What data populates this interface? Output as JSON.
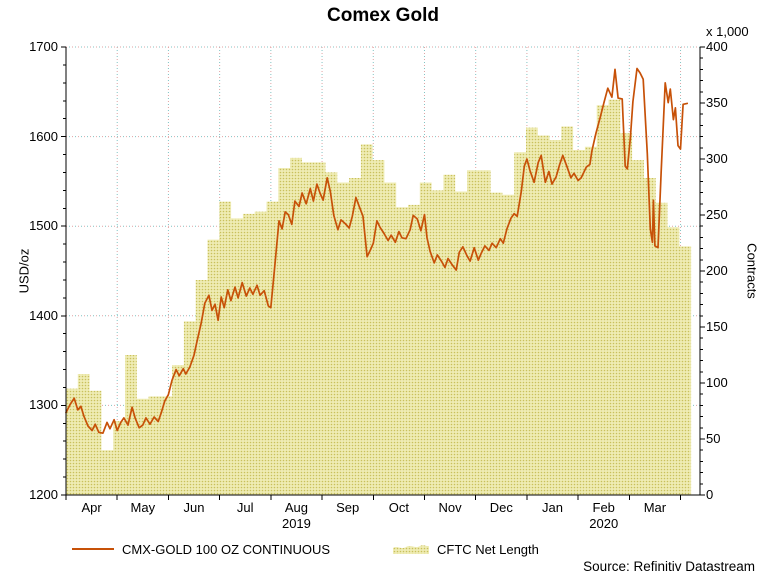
{
  "title": "Comex Gold",
  "right_axis_unit": "x 1,000",
  "left_axis_title": "USD/oz",
  "right_axis_title": "Contracts",
  "source": "Source: Refinitiv Datastream",
  "colors": {
    "gold_line": "#C75108",
    "area_bg": "#EFECB4",
    "area_dot": "#C9C05C",
    "grid_pink": "#E2A2A2",
    "grid_teal": "#7FC4C4",
    "axis": "#000000"
  },
  "legend": [
    {
      "label": "CMX-GOLD 100 OZ CONTINUOUS",
      "type": "line"
    },
    {
      "label": "CFTC Net Length",
      "type": "area"
    }
  ],
  "chart_data": {
    "type": "combo-line-steparea",
    "title": "Comex Gold",
    "x_unit": "months since 2019-04-01",
    "x_max_months": 12.38,
    "x_tick_labels": [
      "Apr",
      "May",
      "Jun",
      "Jul",
      "Aug",
      "Sep",
      "Oct",
      "Nov",
      "Dec",
      "Jan",
      "Feb",
      "Mar"
    ],
    "x_year_labels": [
      {
        "label": "2019",
        "month_index": 4
      },
      {
        "label": "2020",
        "month_index": 10
      }
    ],
    "left_axis": {
      "title": "USD/oz",
      "min": 1200,
      "max": 1700,
      "major": 100,
      "minor": 20
    },
    "right_axis": {
      "title": "Contracts",
      "unit": "x 1,000",
      "min": 0,
      "max": 400,
      "major": 50,
      "minor": 10
    },
    "grid": {
      "horizontal_at": [
        1300,
        1400,
        1500,
        1600,
        1700
      ],
      "vertical_at_month_bounds": true,
      "style": "dotted"
    },
    "series": [
      {
        "name": "CMX-GOLD 100 OZ CONTINUOUS",
        "axis": "left",
        "type": "line",
        "units": "USD/oz",
        "points": [
          [
            0,
            1292
          ],
          [
            0.08,
            1301
          ],
          [
            0.16,
            1308
          ],
          [
            0.23,
            1295
          ],
          [
            0.29,
            1299
          ],
          [
            0.35,
            1288
          ],
          [
            0.43,
            1277
          ],
          [
            0.51,
            1272
          ],
          [
            0.57,
            1279
          ],
          [
            0.64,
            1270
          ],
          [
            0.72,
            1269
          ],
          [
            0.8,
            1281
          ],
          [
            0.86,
            1274
          ],
          [
            0.94,
            1284
          ],
          [
            1.0,
            1272
          ],
          [
            1.07,
            1281
          ],
          [
            1.13,
            1286
          ],
          [
            1.21,
            1278
          ],
          [
            1.29,
            1298
          ],
          [
            1.35,
            1286
          ],
          [
            1.43,
            1275
          ],
          [
            1.5,
            1278
          ],
          [
            1.56,
            1286
          ],
          [
            1.64,
            1279
          ],
          [
            1.72,
            1287
          ],
          [
            1.8,
            1282
          ],
          [
            1.86,
            1292
          ],
          [
            1.93,
            1305
          ],
          [
            2.0,
            1312
          ],
          [
            2.07,
            1328
          ],
          [
            2.15,
            1340
          ],
          [
            2.21,
            1333
          ],
          [
            2.29,
            1341
          ],
          [
            2.34,
            1335
          ],
          [
            2.42,
            1343
          ],
          [
            2.5,
            1356
          ],
          [
            2.56,
            1372
          ],
          [
            2.64,
            1392
          ],
          [
            2.71,
            1414
          ],
          [
            2.79,
            1423
          ],
          [
            2.85,
            1406
          ],
          [
            2.91,
            1413
          ],
          [
            2.97,
            1395
          ],
          [
            3.03,
            1421
          ],
          [
            3.09,
            1409
          ],
          [
            3.16,
            1429
          ],
          [
            3.22,
            1417
          ],
          [
            3.3,
            1432
          ],
          [
            3.36,
            1420
          ],
          [
            3.44,
            1437
          ],
          [
            3.52,
            1422
          ],
          [
            3.59,
            1431
          ],
          [
            3.65,
            1424
          ],
          [
            3.73,
            1434
          ],
          [
            3.79,
            1423
          ],
          [
            3.87,
            1428
          ],
          [
            3.95,
            1411
          ],
          [
            4.0,
            1409
          ],
          [
            4.06,
            1445
          ],
          [
            4.16,
            1506
          ],
          [
            4.22,
            1497
          ],
          [
            4.28,
            1516
          ],
          [
            4.34,
            1513
          ],
          [
            4.41,
            1502
          ],
          [
            4.47,
            1528
          ],
          [
            4.55,
            1522
          ],
          [
            4.61,
            1537
          ],
          [
            4.69,
            1525
          ],
          [
            4.77,
            1542
          ],
          [
            4.83,
            1528
          ],
          [
            4.9,
            1547
          ],
          [
            4.96,
            1537
          ],
          [
            5.02,
            1529
          ],
          [
            5.1,
            1554
          ],
          [
            5.16,
            1539
          ],
          [
            5.23,
            1512
          ],
          [
            5.31,
            1496
          ],
          [
            5.37,
            1507
          ],
          [
            5.45,
            1503
          ],
          [
            5.53,
            1498
          ],
          [
            5.59,
            1511
          ],
          [
            5.66,
            1532
          ],
          [
            5.72,
            1523
          ],
          [
            5.8,
            1511
          ],
          [
            5.88,
            1466
          ],
          [
            5.94,
            1473
          ],
          [
            6.0,
            1481
          ],
          [
            6.07,
            1506
          ],
          [
            6.13,
            1499
          ],
          [
            6.21,
            1492
          ],
          [
            6.29,
            1484
          ],
          [
            6.35,
            1490
          ],
          [
            6.43,
            1482
          ],
          [
            6.5,
            1494
          ],
          [
            6.56,
            1487
          ],
          [
            6.64,
            1486
          ],
          [
            6.72,
            1496
          ],
          [
            6.78,
            1512
          ],
          [
            6.86,
            1508
          ],
          [
            6.93,
            1495
          ],
          [
            7.0,
            1513
          ],
          [
            7.05,
            1487
          ],
          [
            7.11,
            1472
          ],
          [
            7.19,
            1459
          ],
          [
            7.25,
            1468
          ],
          [
            7.33,
            1461
          ],
          [
            7.4,
            1454
          ],
          [
            7.46,
            1464
          ],
          [
            7.54,
            1457
          ],
          [
            7.62,
            1451
          ],
          [
            7.68,
            1471
          ],
          [
            7.75,
            1477
          ],
          [
            7.83,
            1467
          ],
          [
            7.89,
            1461
          ],
          [
            7.97,
            1476
          ],
          [
            8.05,
            1462
          ],
          [
            8.11,
            1470
          ],
          [
            8.18,
            1478
          ],
          [
            8.26,
            1473
          ],
          [
            8.32,
            1481
          ],
          [
            8.4,
            1476
          ],
          [
            8.48,
            1486
          ],
          [
            8.54,
            1481
          ],
          [
            8.61,
            1497
          ],
          [
            8.69,
            1509
          ],
          [
            8.75,
            1514
          ],
          [
            8.81,
            1511
          ],
          [
            8.89,
            1539
          ],
          [
            8.95,
            1567
          ],
          [
            9.0,
            1575
          ],
          [
            9.06,
            1562
          ],
          [
            9.14,
            1549
          ],
          [
            9.22,
            1571
          ],
          [
            9.28,
            1579
          ],
          [
            9.36,
            1549
          ],
          [
            9.43,
            1561
          ],
          [
            9.49,
            1547
          ],
          [
            9.57,
            1555
          ],
          [
            9.64,
            1569
          ],
          [
            9.7,
            1579
          ],
          [
            9.78,
            1567
          ],
          [
            9.86,
            1554
          ],
          [
            9.92,
            1559
          ],
          [
            10.0,
            1551
          ],
          [
            10.06,
            1554
          ],
          [
            10.16,
            1566
          ],
          [
            10.23,
            1569
          ],
          [
            10.27,
            1584
          ],
          [
            10.35,
            1604
          ],
          [
            10.43,
            1621
          ],
          [
            10.51,
            1639
          ],
          [
            10.58,
            1654
          ],
          [
            10.66,
            1644
          ],
          [
            10.72,
            1675
          ],
          [
            10.78,
            1643
          ],
          [
            10.86,
            1642
          ],
          [
            10.92,
            1567
          ],
          [
            10.96,
            1564
          ],
          [
            11.02,
            1599
          ],
          [
            11.07,
            1639
          ],
          [
            11.15,
            1676
          ],
          [
            11.21,
            1671
          ],
          [
            11.27,
            1664
          ],
          [
            11.35,
            1581
          ],
          [
            11.41,
            1497
          ],
          [
            11.45,
            1482
          ],
          [
            11.47,
            1529
          ],
          [
            11.5,
            1478
          ],
          [
            11.56,
            1476
          ],
          [
            11.62,
            1559
          ],
          [
            11.7,
            1660
          ],
          [
            11.76,
            1638
          ],
          [
            11.8,
            1653
          ],
          [
            11.86,
            1619
          ],
          [
            11.9,
            1632
          ],
          [
            11.95,
            1590
          ],
          [
            12.0,
            1586
          ],
          [
            12.05,
            1636
          ],
          [
            12.13,
            1637
          ]
        ]
      },
      {
        "name": "CFTC Net Length",
        "axis": "right",
        "type": "step-area",
        "units": "thousand contracts",
        "week_width_months": 0.2303,
        "values": [
          95,
          108,
          93,
          40,
          66,
          125,
          86,
          88,
          88,
          116,
          155,
          192,
          228,
          262,
          247,
          251,
          253,
          262,
          292,
          301,
          297,
          297,
          288,
          279,
          283,
          313,
          299,
          279,
          257,
          259,
          279,
          272,
          286,
          271,
          290,
          290,
          270,
          268,
          306,
          328,
          321,
          317,
          329,
          308,
          311,
          348,
          353,
          323,
          299,
          283,
          261,
          239,
          222
        ]
      }
    ]
  }
}
